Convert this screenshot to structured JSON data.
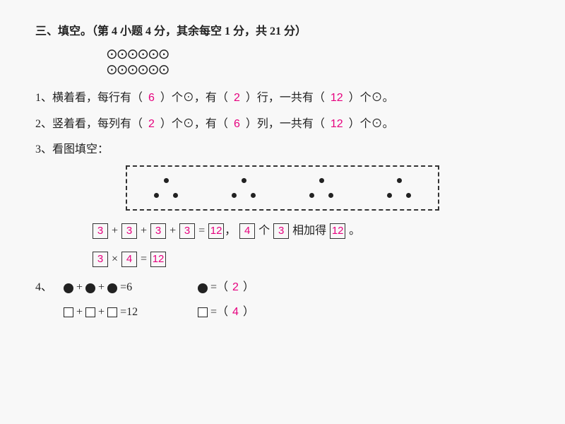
{
  "heading": "三、填空。（第 4 小题 4 分，其余每空 1 分，共 21 分）",
  "circleGlyph": "⊙",
  "grid": {
    "cols": 6,
    "rows": 2
  },
  "q1": {
    "prefix": "1、横着看，每行有（",
    "a": "6",
    "mid1": "）个⊙，有（",
    "b": "2",
    "mid2": "）行，一共有（",
    "c": "12",
    "suffix": "）个⊙。"
  },
  "q2": {
    "prefix": "2、竖着看，每列有（",
    "a": "2",
    "mid1": "）个⊙，有（",
    "b": "6",
    "mid2": "）列，一共有（",
    "c": "12",
    "suffix": "）个⊙。"
  },
  "q3": {
    "label": "3、看图填空：",
    "dotGroupCount": 4,
    "dotsPerGroup": 3,
    "add": {
      "a": "3",
      "b": "3",
      "c": "3",
      "d": "3",
      "sum": "12"
    },
    "phrase": {
      "count": "4",
      "each": "3",
      "mid": "个",
      "tail": "相加得",
      "result": "12",
      "end": "。"
    },
    "mult": {
      "a": "3",
      "b": "4",
      "eq": "12"
    }
  },
  "q4": {
    "label": "4、",
    "r1": {
      "shapesSum": "6",
      "answer": "2"
    },
    "r2": {
      "shapesSum": "12",
      "answer": "4"
    }
  },
  "style": {
    "answerColor": "#e6007e",
    "textColor": "#222222",
    "background": "#f8f8f8",
    "fontSizeBody": 16,
    "boxBorder": "#333333"
  }
}
